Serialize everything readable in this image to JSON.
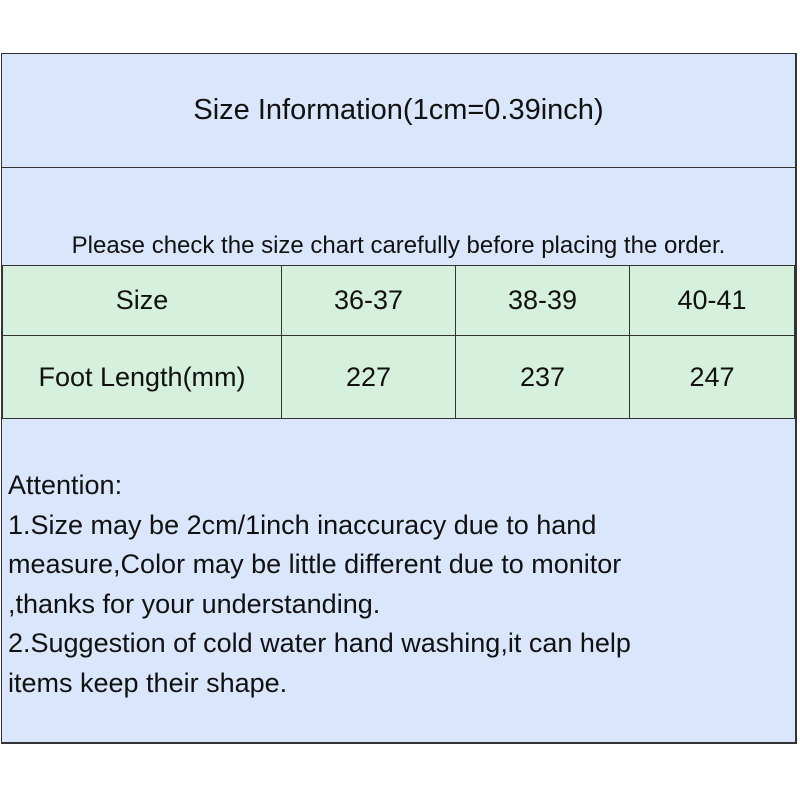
{
  "title": "Size Information(1cm=0.39inch)",
  "note": "Please check the size chart carefully before placing the order.",
  "table": {
    "rows": [
      [
        "Size",
        "36-37",
        "38-39",
        "40-41"
      ],
      [
        "Foot Length(mm)",
        "227",
        "237",
        "247"
      ]
    ]
  },
  "attention": {
    "heading": "Attention:",
    "lines": [
      "1.Size may be 2cm/1inch inaccuracy due to hand",
      "measure,Color may be little different due to monitor",
      ",thanks for your understanding.",
      "2.Suggestion of cold water hand washing,it can help",
      "items keep their shape."
    ]
  },
  "colors": {
    "background": "#d9e6fb",
    "table": "#d5f0dc"
  }
}
